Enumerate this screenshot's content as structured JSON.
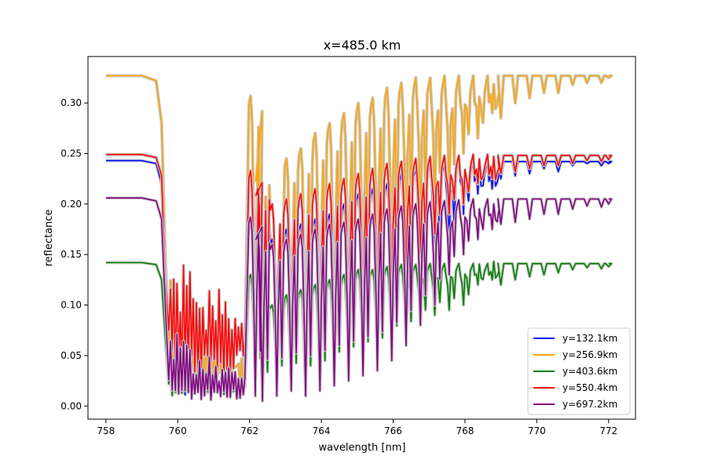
{
  "chart_data": {
    "type": "line",
    "title": "x=485.0 km",
    "xlabel": "wavelength [nm]",
    "ylabel": "reflectance",
    "xlim": [
      757.5,
      772.75
    ],
    "ylim": [
      -0.013,
      0.346
    ],
    "xticks": [
      758,
      760,
      762,
      764,
      766,
      768,
      770,
      772
    ],
    "xtick_labels": [
      "758",
      "760",
      "762",
      "764",
      "766",
      "768",
      "770",
      "772"
    ],
    "yticks": [
      0.0,
      0.05,
      0.1,
      0.15,
      0.2,
      0.25,
      0.3
    ],
    "ytick_labels": [
      "0.00",
      "0.05",
      "0.10",
      "0.15",
      "0.20",
      "0.25",
      "0.30"
    ],
    "grid": false,
    "legend_position": "lower-right",
    "continuum_x": [
      758.0,
      759.0,
      759.4,
      759.55
    ],
    "band_x": [
      762.0,
      762.2,
      762.6,
      763.0,
      763.4,
      763.8,
      764.2,
      764.6,
      765.0,
      765.4,
      765.8,
      766.2,
      766.6,
      767.0,
      767.4,
      767.8,
      768.2,
      768.6
    ],
    "tail_x": [
      769.0,
      769.4,
      769.8,
      770.2,
      770.6,
      771.0,
      771.4,
      771.8,
      772.0
    ],
    "series": [
      {
        "name": "y=132.1km",
        "color": "#0000ff",
        "continuum": [
          0.243,
          0.243,
          0.24,
          0.22
        ],
        "trough_floor": 0.01,
        "trough_noise": 0.045,
        "trough_peaks": [
          0.065,
          0.04,
          0.03,
          0.035
        ],
        "band_peaks": [
          0.225,
          0.19,
          0.165,
          0.175,
          0.18,
          0.185,
          0.19,
          0.2,
          0.21,
          0.215,
          0.22,
          0.23,
          0.235,
          0.24,
          0.24,
          0.242,
          0.242,
          0.242
        ],
        "band_dips": [
          0.02,
          0.01,
          0.015,
          0.02,
          0.01,
          0.02,
          0.03,
          0.035,
          0.04,
          0.05,
          0.06,
          0.08,
          0.1,
          0.13,
          0.16,
          0.19,
          0.21,
          0.215
        ],
        "tail_level": 0.242,
        "tail_dips": [
          0.225,
          0.228,
          0.23,
          0.235,
          0.232,
          0.238,
          0.24,
          0.238,
          0.24
        ]
      },
      {
        "name": "y=256.9km",
        "color": "#ffa500",
        "continuum": [
          0.327,
          0.327,
          0.322,
          0.28
        ],
        "trough_floor": 0.015,
        "trough_noise": 0.07,
        "trough_peaks": [
          0.13,
          0.08,
          0.07,
          0.065
        ],
        "band_peaks": [
          0.307,
          0.23,
          0.2,
          0.245,
          0.255,
          0.27,
          0.28,
          0.29,
          0.3,
          0.305,
          0.315,
          0.32,
          0.325,
          0.325,
          0.327,
          0.327,
          0.327,
          0.327
        ],
        "band_dips": [
          0.03,
          0.02,
          0.03,
          0.04,
          0.03,
          0.05,
          0.06,
          0.07,
          0.08,
          0.1,
          0.12,
          0.15,
          0.18,
          0.2,
          0.21,
          0.25,
          0.265,
          0.29
        ],
        "tail_level": 0.327,
        "tail_dips": [
          0.285,
          0.3,
          0.305,
          0.31,
          0.31,
          0.318,
          0.32,
          0.32,
          0.325
        ]
      },
      {
        "name": "y=403.6km",
        "color": "#008000",
        "continuum": [
          0.142,
          0.142,
          0.14,
          0.125
        ],
        "trough_floor": 0.01,
        "trough_noise": 0.02,
        "trough_peaks": [
          0.05,
          0.03,
          0.02,
          0.02
        ],
        "band_peaks": [
          0.13,
          0.105,
          0.1,
          0.11,
          0.115,
          0.12,
          0.125,
          0.13,
          0.135,
          0.135,
          0.138,
          0.14,
          0.14,
          0.141,
          0.141,
          0.141,
          0.141,
          0.141
        ],
        "band_dips": [
          0.02,
          0.01,
          0.02,
          0.02,
          0.015,
          0.02,
          0.03,
          0.035,
          0.04,
          0.045,
          0.06,
          0.065,
          0.08,
          0.09,
          0.095,
          0.1,
          0.12,
          0.125
        ],
        "tail_level": 0.141,
        "tail_dips": [
          0.12,
          0.125,
          0.128,
          0.13,
          0.132,
          0.135,
          0.137,
          0.136,
          0.138
        ]
      },
      {
        "name": "y=550.4km",
        "color": "#ff0000",
        "continuum": [
          0.249,
          0.249,
          0.246,
          0.228
        ],
        "trough_floor": 0.03,
        "trough_noise": 0.075,
        "trough_peaks": [
          0.16,
          0.13,
          0.12,
          0.11
        ],
        "band_peaks": [
          0.233,
          0.215,
          0.2,
          0.205,
          0.21,
          0.215,
          0.22,
          0.225,
          0.23,
          0.235,
          0.24,
          0.242,
          0.245,
          0.247,
          0.248,
          0.248,
          0.249,
          0.249
        ],
        "band_dips": [
          0.04,
          0.03,
          0.035,
          0.04,
          0.03,
          0.045,
          0.05,
          0.06,
          0.07,
          0.08,
          0.1,
          0.12,
          0.14,
          0.17,
          0.19,
          0.2,
          0.22,
          0.225
        ],
        "tail_level": 0.248,
        "tail_dips": [
          0.23,
          0.232,
          0.235,
          0.238,
          0.238,
          0.24,
          0.243,
          0.242,
          0.244
        ]
      },
      {
        "name": "y=697.2km",
        "color": "#800080",
        "continuum": [
          0.206,
          0.206,
          0.203,
          0.185
        ],
        "trough_floor": 0.005,
        "trough_noise": 0.035,
        "trough_peaks": [
          0.08,
          0.05,
          0.04,
          0.04
        ],
        "band_peaks": [
          0.187,
          0.17,
          0.16,
          0.165,
          0.17,
          0.175,
          0.18,
          0.182,
          0.185,
          0.19,
          0.195,
          0.198,
          0.2,
          0.202,
          0.203,
          0.204,
          0.205,
          0.205
        ],
        "band_dips": [
          0.01,
          0.005,
          0.01,
          0.015,
          0.01,
          0.015,
          0.02,
          0.025,
          0.03,
          0.035,
          0.045,
          0.06,
          0.08,
          0.1,
          0.13,
          0.15,
          0.165,
          0.175
        ],
        "tail_level": 0.205,
        "tail_dips": [
          0.18,
          0.182,
          0.185,
          0.19,
          0.19,
          0.195,
          0.198,
          0.197,
          0.2
        ]
      }
    ]
  }
}
